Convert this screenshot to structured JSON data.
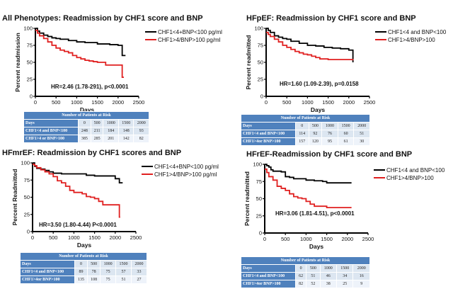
{
  "chart_data": [
    {
      "type": "line",
      "subtype": "kaplan-meier",
      "title": "All Phenotypes: Readmission by CHF1 score and BNP",
      "xlabel": "Days",
      "ylabel": "Percent readmission",
      "xlim": [
        0,
        2500
      ],
      "ylim": [
        0,
        100
      ],
      "xticks": [
        "0",
        "500",
        "1000",
        "1500",
        "2000",
        "2500"
      ],
      "yticks": [
        "0",
        "25",
        "50",
        "75",
        "100"
      ],
      "annotation": "HR=2.46 (1.78-291), p<0.0001",
      "legend_position": "right",
      "series": [
        {
          "name": "CHF1<4+BNP<100 pg/ml",
          "color": "#000000",
          "x": [
            0,
            50,
            100,
            200,
            300,
            400,
            500,
            600,
            800,
            1000,
            1200,
            1500,
            1800,
            2000,
            2100,
            2100,
            2180
          ],
          "y": [
            100,
            96,
            93,
            90,
            88,
            86,
            85,
            84,
            82,
            80,
            79,
            77,
            76,
            75,
            73,
            60,
            60
          ]
        },
        {
          "name": "CHF1>4/BNP>100 pg/ml",
          "color": "#e02020",
          "x": [
            0,
            50,
            100,
            200,
            300,
            400,
            500,
            600,
            700,
            800,
            900,
            1000,
            1100,
            1200,
            1300,
            1400,
            1500,
            1700,
            2000,
            2100,
            2100,
            2140
          ],
          "y": [
            97,
            93,
            89,
            85,
            80,
            75,
            71,
            68,
            66,
            64,
            60,
            57,
            55,
            53,
            52,
            51,
            50,
            46,
            46,
            45,
            28,
            28
          ]
        }
      ],
      "risk_table": {
        "title": "Number of Patients at Risk",
        "columns": [
          "Days",
          "0",
          "500",
          "1000",
          "1500",
          "2000"
        ],
        "rows": [
          [
            "CHF1<4 and BNP<100",
            "248",
            "211",
            "184",
            "148",
            "93"
          ],
          [
            "CHF1>4 or BNP>100",
            "385",
            "285",
            "201",
            "142",
            "82"
          ]
        ]
      }
    },
    {
      "type": "line",
      "subtype": "kaplan-meier",
      "title": "HFpEF: Readmission by CHF1 score and BNP",
      "xlabel": "Days",
      "ylabel": "Percent readmitted",
      "xlim": [
        0,
        2500
      ],
      "ylim": [
        0,
        100
      ],
      "xticks": [
        "0",
        "500",
        "1000",
        "1500",
        "2000",
        "2500"
      ],
      "yticks": [
        "0",
        "25",
        "50",
        "75",
        "100"
      ],
      "annotation": "HR=1.60 (1.09-2.39), p=0.0158",
      "legend_position": "right",
      "series": [
        {
          "name": "CHF1<4 and BNP<100",
          "color": "#000000",
          "x": [
            0,
            50,
            100,
            200,
            300,
            400,
            500,
            600,
            800,
            1000,
            1200,
            1400,
            1600,
            1800,
            2000,
            2100,
            2100
          ],
          "y": [
            100,
            97,
            94,
            89,
            87,
            85,
            84,
            81,
            78,
            75,
            74,
            72,
            71,
            70,
            68,
            67,
            50
          ]
        },
        {
          "name": "CHF1>4/BNP>100",
          "color": "#e02020",
          "x": [
            0,
            50,
            100,
            200,
            300,
            400,
            500,
            600,
            700,
            800,
            900,
            1000,
            1100,
            1200,
            1300,
            1500,
            2000,
            2100
          ],
          "y": [
            94,
            91,
            88,
            84,
            80,
            75,
            72,
            69,
            66,
            64,
            62,
            61,
            59,
            57,
            55,
            54,
            54,
            53
          ]
        }
      ],
      "risk_table": {
        "title": "Number of Patients at Risk",
        "columns": [
          "Days",
          "0",
          "500",
          "1000",
          "1500",
          "2000"
        ],
        "rows": [
          [
            "CHF1<4 and BNP<100",
            "114",
            "92",
            "76",
            "60",
            "51"
          ],
          [
            "CHF1>4or BNP>100",
            "157",
            "120",
            "95",
            "61",
            "30"
          ]
        ]
      }
    },
    {
      "type": "line",
      "subtype": "kaplan-meier",
      "title": "HFmrEF: Readmission by CHF1 scores and BNP",
      "xlabel": "Days",
      "ylabel": "Percent Readmitted",
      "xlim": [
        0,
        2500
      ],
      "ylim": [
        0,
        100
      ],
      "xticks": [
        "0",
        "500",
        "1000",
        "1500",
        "2000",
        "2500"
      ],
      "yticks": [
        "0",
        "25",
        "50",
        "75",
        "100"
      ],
      "annotation": "HR=3.50 (1.80-4.44) P<0.0001",
      "legend_position": "right",
      "series": [
        {
          "name": "CHF1<4+BNP<100 pg/ml",
          "color": "#000000",
          "x": [
            0,
            50,
            100,
            200,
            300,
            400,
            500,
            700,
            1000,
            1300,
            1500,
            1800,
            2000,
            2100,
            2100,
            2180
          ],
          "y": [
            100,
            95,
            92,
            91,
            89,
            87,
            85,
            84,
            84,
            82,
            81,
            81,
            77,
            77,
            71,
            71
          ]
        },
        {
          "name": "CHF1>4/BNP>100 pg/ml",
          "color": "#e02020",
          "x": [
            0,
            50,
            100,
            200,
            300,
            400,
            500,
            600,
            700,
            800,
            900,
            1000,
            1200,
            1300,
            1400,
            1500,
            1600,
            1700,
            2000,
            2100,
            2100,
            2120
          ],
          "y": [
            98,
            96,
            93,
            90,
            87,
            84,
            80,
            74,
            71,
            66,
            60,
            57,
            55,
            51,
            50,
            48,
            44,
            39,
            39,
            38,
            21,
            21
          ]
        }
      ],
      "risk_table": {
        "title": "Number of Patients at Risk",
        "columns": [
          "Days",
          "0",
          "500",
          "1000",
          "1500",
          "2000"
        ],
        "rows": [
          [
            "CHF1<4 and BNP<100",
            "89",
            "78",
            "75",
            "57",
            "33"
          ],
          [
            "CHF1>4or BNP>100",
            "135",
            "108",
            "75",
            "51",
            "27"
          ]
        ]
      }
    },
    {
      "type": "line",
      "subtype": "kaplan-meier",
      "title": "HFrEF-Readmission by CHF1 score and BNP",
      "xlabel": "Days",
      "ylabel": "Percent readmitted",
      "xlim": [
        0,
        2500
      ],
      "ylim": [
        0,
        100
      ],
      "xticks": [
        "0",
        "500",
        "1000",
        "1500",
        "2000",
        "2500"
      ],
      "yticks": [
        "0",
        "25",
        "50",
        "75",
        "100"
      ],
      "annotation": "HR=3.06 (1.81-4.51), p<0.0001",
      "legend_position": "right",
      "series": [
        {
          "name": "CHF1<4 and BNP<100",
          "color": "#000000",
          "x": [
            0,
            50,
            100,
            150,
            200,
            400,
            500,
            600,
            700,
            1000,
            1200,
            1400,
            1500,
            2100
          ],
          "y": [
            100,
            98,
            96,
            92,
            90,
            89,
            82,
            81,
            79,
            77,
            76,
            75,
            73,
            73
          ]
        },
        {
          "name": "CHF1>4/BNP>100",
          "color": "#e02020",
          "x": [
            0,
            50,
            100,
            200,
            300,
            400,
            500,
            600,
            700,
            800,
            900,
            1000,
            1100,
            1200,
            1500,
            2100
          ],
          "y": [
            93,
            88,
            82,
            77,
            68,
            65,
            62,
            57,
            53,
            51,
            50,
            46,
            42,
            39,
            37,
            37
          ]
        }
      ],
      "risk_table": {
        "title": "Number of Patients at Risk",
        "columns": [
          "Days",
          "0",
          "500",
          "1000",
          "1500",
          "2000"
        ],
        "rows": [
          [
            "CHF1<4 and BNP<100",
            "62",
            "51",
            "46",
            "34",
            "16"
          ],
          [
            "CHF1>4or BNP>100",
            "82",
            "52",
            "38",
            "25",
            "9"
          ]
        ]
      }
    }
  ]
}
